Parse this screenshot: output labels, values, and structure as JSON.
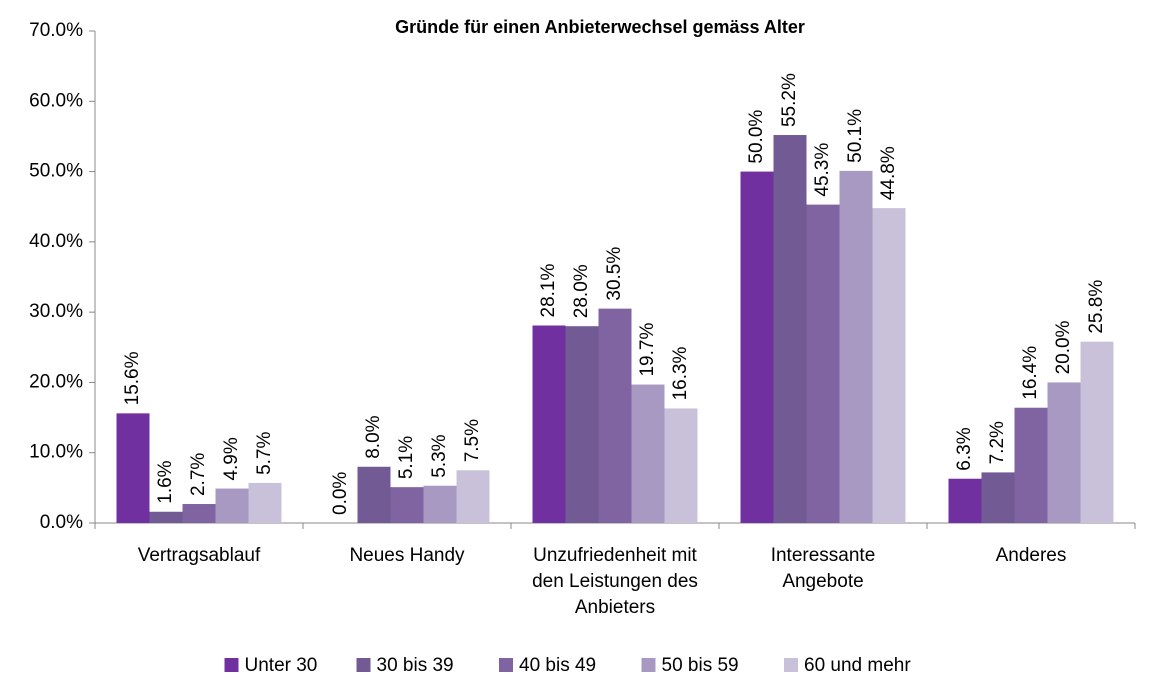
{
  "chart_data": {
    "type": "bar",
    "title": "Gründe für einen Anbieterwechsel gemäss Alter",
    "categories": [
      "Vertragsablauf",
      "Neues Handy",
      "Unzufriedenheit mit den Leistungen des Anbieters",
      "Interessante Angebote",
      "Anderes"
    ],
    "series": [
      {
        "name": "Unter 30",
        "color": "#7030a0",
        "values": [
          15.6,
          0.0,
          28.1,
          50.0,
          6.3
        ],
        "value_labels": [
          "15.6%",
          "0.0%",
          "28.1%",
          "50.0%",
          "6.3%"
        ]
      },
      {
        "name": "30 bis 39",
        "color": "#725a95",
        "values": [
          1.6,
          8.0,
          28.0,
          55.2,
          7.2
        ],
        "value_labels": [
          "1.6%",
          "8.0%",
          "28.0%",
          "55.2%",
          "7.2%"
        ]
      },
      {
        "name": "40 bis 49",
        "color": "#8064a2",
        "values": [
          2.7,
          5.1,
          30.5,
          45.3,
          16.4
        ],
        "value_labels": [
          "2.7%",
          "5.1%",
          "30.5%",
          "45.3%",
          "16.4%"
        ]
      },
      {
        "name": "50 bis 59",
        "color": "#a899c2",
        "values": [
          4.9,
          5.3,
          19.7,
          50.1,
          20.0
        ],
        "value_labels": [
          "4.9%",
          "5.3%",
          "19.7%",
          "50.1%",
          "20.0%"
        ]
      },
      {
        "name": "60 und mehr",
        "color": "#c9c0da",
        "values": [
          5.7,
          7.5,
          16.3,
          44.8,
          25.8
        ],
        "value_labels": [
          "5.7%",
          "7.5%",
          "16.3%",
          "44.8%",
          "25.8%"
        ]
      }
    ],
    "ylim": [
      0,
      70
    ],
    "yticks": [
      {
        "value": 0,
        "label": "0.0%"
      },
      {
        "value": 10,
        "label": "10.0%"
      },
      {
        "value": 20,
        "label": "20.0%"
      },
      {
        "value": 30,
        "label": "30.0%"
      },
      {
        "value": 40,
        "label": "40.0%"
      },
      {
        "value": 50,
        "label": "50.0%"
      },
      {
        "value": 60,
        "label": "60.0%"
      },
      {
        "value": 70,
        "label": "70.0%"
      }
    ],
    "legend": "bottom"
  }
}
